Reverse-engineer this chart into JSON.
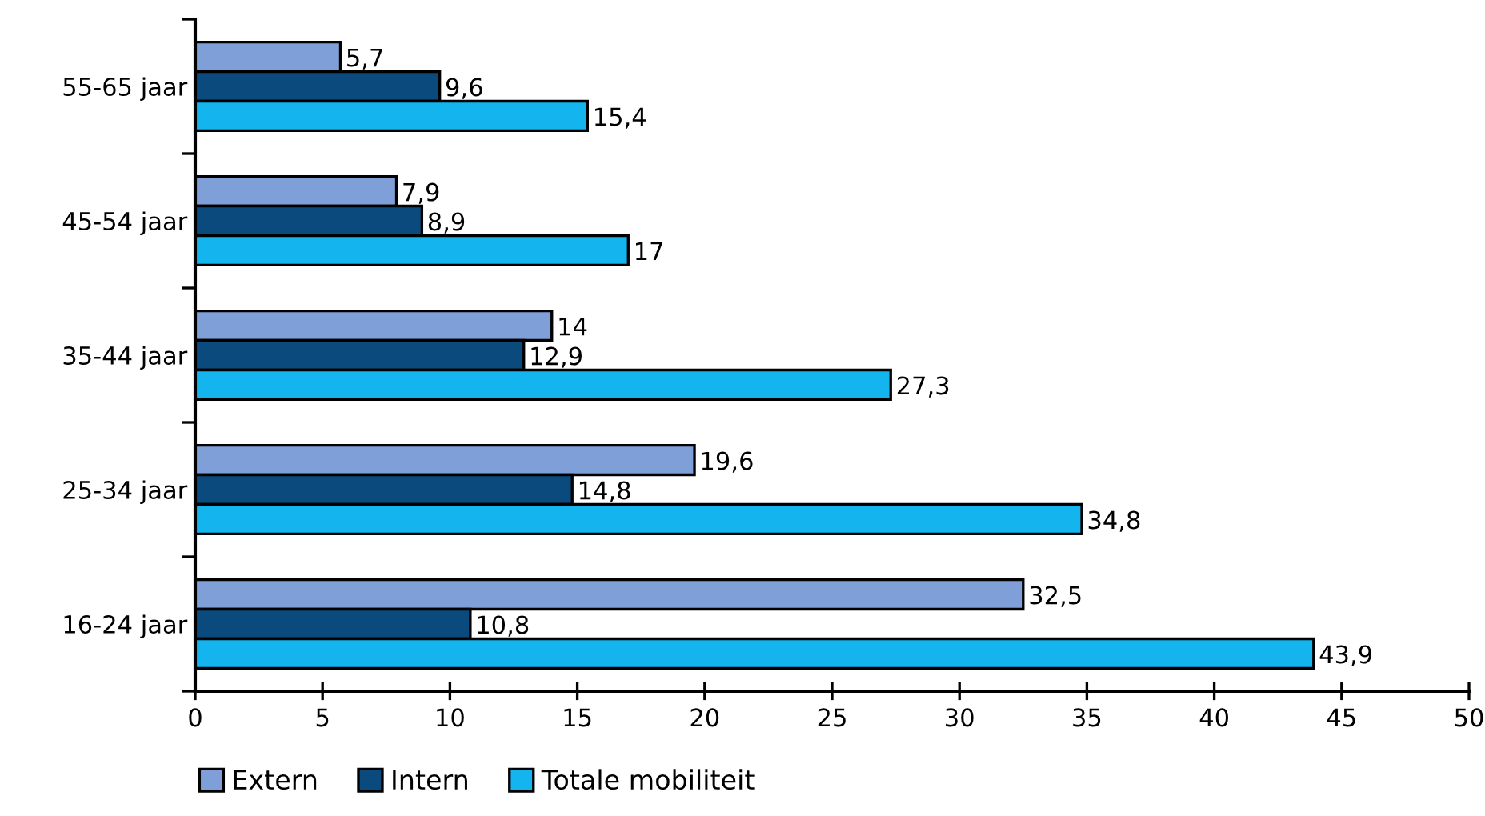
{
  "chart_data": {
    "type": "bar",
    "orientation": "horizontal",
    "categories": [
      "55-65 jaar",
      "45-54 jaar",
      "35-44 jaar",
      "25-34 jaar",
      "16-24 jaar"
    ],
    "series": [
      {
        "name": "Extern",
        "color": "#7f9fd9",
        "values": [
          5.7,
          7.9,
          14,
          19.6,
          32.5
        ],
        "value_labels": [
          "5,7",
          "7,9",
          "14",
          "19,6",
          "32,5"
        ]
      },
      {
        "name": "Intern",
        "color": "#0b4a7c",
        "values": [
          9.6,
          8.9,
          12.9,
          14.8,
          10.8
        ],
        "value_labels": [
          "9,6",
          "8,9",
          "12,9",
          "14,8",
          "10,8"
        ]
      },
      {
        "name": "Totale mobiliteit",
        "color": "#14b4ef",
        "values": [
          15.4,
          17,
          27.3,
          34.8,
          43.9
        ],
        "value_labels": [
          "15,4",
          "17",
          "27,3",
          "34,8",
          "43,9"
        ]
      }
    ],
    "xlim": [
      0,
      50
    ],
    "xticks": [
      0,
      5,
      10,
      15,
      20,
      25,
      30,
      35,
      40,
      45,
      50
    ],
    "grid": false,
    "legend": "bottom"
  }
}
